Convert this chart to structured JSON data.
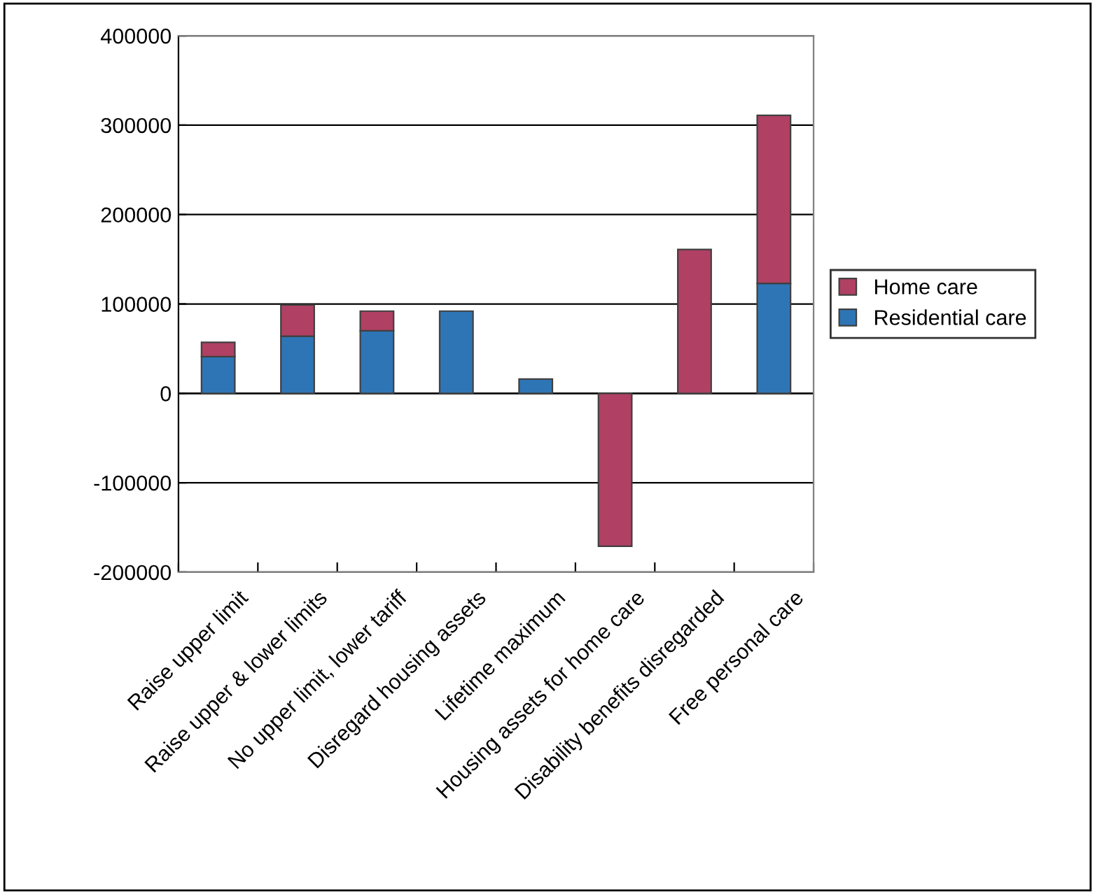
{
  "chart_data": {
    "type": "bar",
    "stacked": true,
    "categories": [
      "Raise upper limit",
      "Raise upper & lower limits",
      "No upper limit, lower tariff",
      "Disregard housing assets",
      "Lifetime maximum",
      "Housing assets for home care",
      "Disability benefits disregarded",
      "Free personal care"
    ],
    "series": [
      {
        "name": "Residential care",
        "color": "#2e75b6",
        "values": [
          41000,
          64000,
          70000,
          92000,
          16000,
          null,
          null,
          123000
        ]
      },
      {
        "name": "Home care",
        "color": "#b04064",
        "values": [
          16000,
          35000,
          22000,
          null,
          null,
          -171000,
          161000,
          188000
        ]
      }
    ],
    "ylim": [
      -200000,
      400000
    ],
    "yticks": [
      -200000,
      -100000,
      0,
      100000,
      200000,
      300000,
      400000
    ],
    "grid": "y",
    "legend": "right"
  }
}
